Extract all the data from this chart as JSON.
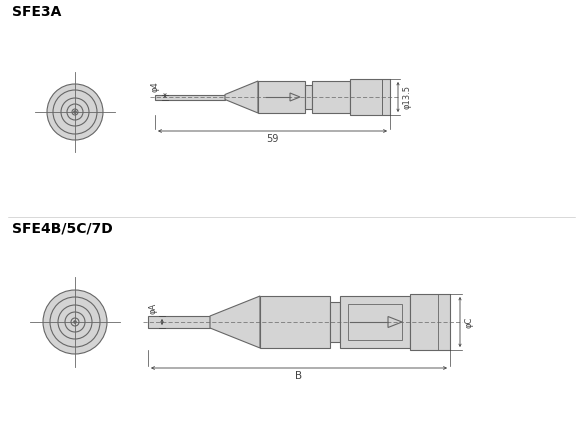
{
  "title_top": "SFE3A",
  "title_bottom": "SFE4B/5C/7D",
  "bg_color": "#ffffff",
  "line_color": "#666666",
  "fill_color": "#d4d4d4",
  "dim_color": "#444444",
  "text_color": "#000000",
  "top_phi4": "φ4",
  "top_phi13": "φ13.5",
  "top_59": "59",
  "bot_A": "φA",
  "bot_B": "B",
  "bot_C": "φC"
}
